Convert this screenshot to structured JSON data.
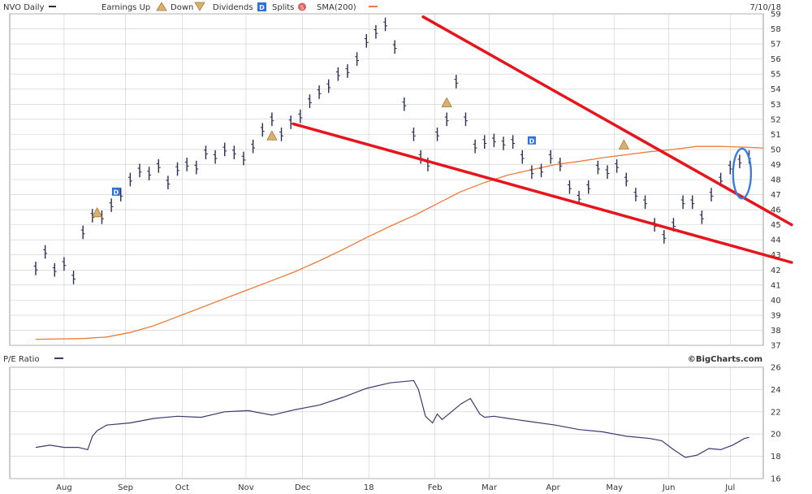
{
  "header": {
    "symbol_label": "NVO Daily",
    "earnings_up_label": "Earnings Up",
    "down_label": "Down",
    "dividends_label": "Dividends",
    "splits_label": "Splits",
    "sma_label": "SMA(200)",
    "date": "7/10/18"
  },
  "lower_header": {
    "pe_label": "P/E Ratio",
    "credit": "©BigCharts.com"
  },
  "colors": {
    "price": "#2b2b55",
    "sma": "#f07a3a",
    "trendline": "#e8141c",
    "highlight": "#3a7fd6",
    "pe": "#3a3a6e",
    "grid": "#cccccc",
    "dividend_marker": "#2a6fdb",
    "earnings_marker": "#c8963c"
  },
  "chart_data": [
    {
      "type": "line",
      "title": "",
      "ylabel": "",
      "ylim": [
        37,
        59
      ],
      "yticks": [
        37,
        38,
        39,
        40,
        41,
        42,
        43,
        44,
        45,
        46,
        47,
        48,
        49,
        50,
        51,
        52,
        53,
        54,
        55,
        56,
        57,
        58,
        59
      ],
      "x_month_labels": [
        "Aug",
        "Sep",
        "Oct",
        "Nov",
        "Dec",
        "18",
        "Feb",
        "Mar",
        "Apr",
        "May",
        "Jun",
        "Jul"
      ],
      "x_month_pos": [
        12,
        38,
        62,
        89,
        113,
        141,
        169,
        192,
        219,
        245,
        268,
        294
      ],
      "xlim": [
        -11,
        308
      ],
      "grid": true,
      "series": [
        {
          "name": "NVO Daily",
          "style": "ohlc",
          "x": [
            0,
            4,
            8,
            12,
            16,
            20,
            24,
            28,
            32,
            36,
            40,
            44,
            48,
            52,
            56,
            60,
            64,
            68,
            72,
            76,
            80,
            84,
            88,
            92,
            96,
            100,
            104,
            108,
            112,
            116,
            120,
            124,
            128,
            132,
            136,
            140,
            144,
            148,
            152,
            156,
            160,
            163,
            166,
            170,
            174,
            178,
            182,
            186,
            190,
            194,
            198,
            202,
            206,
            210,
            214,
            218,
            222,
            226,
            230,
            234,
            238,
            242,
            246,
            250,
            254,
            258,
            262,
            266,
            270,
            274,
            278,
            282,
            286,
            290,
            294,
            298,
            302
          ],
          "values": [
            42.1,
            43.2,
            42.0,
            42.4,
            41.5,
            44.5,
            45.6,
            45.5,
            46.3,
            47.0,
            48.0,
            48.6,
            48.4,
            48.9,
            47.8,
            48.7,
            49.0,
            48.8,
            49.8,
            49.5,
            50.0,
            49.8,
            49.4,
            50.2,
            51.3,
            52.0,
            51.0,
            51.8,
            52.2,
            53.2,
            53.8,
            54.2,
            55.0,
            55.2,
            56.0,
            57.2,
            57.8,
            58.3,
            56.8,
            53.0,
            51.0,
            49.5,
            49.0,
            51.0,
            52.0,
            54.5,
            52.0,
            50.2,
            50.5,
            50.6,
            50.4,
            50.5,
            49.5,
            48.5,
            48.6,
            49.5,
            49.0,
            47.5,
            46.8,
            47.5,
            48.8,
            48.5,
            48.9,
            48.0,
            47.0,
            46.5,
            45.0,
            44.2,
            45.0,
            46.5,
            46.5,
            45.5,
            47.0,
            48.0,
            48.8,
            49.2,
            49.5
          ]
        },
        {
          "name": "SMA(200)",
          "style": "line",
          "x": [
            0,
            20,
            30,
            40,
            50,
            60,
            70,
            80,
            90,
            100,
            110,
            120,
            130,
            140,
            150,
            160,
            170,
            180,
            190,
            200,
            210,
            220,
            230,
            240,
            250,
            260,
            270,
            280,
            290,
            300,
            308
          ],
          "values": [
            37.4,
            37.45,
            37.55,
            37.85,
            38.3,
            38.9,
            39.5,
            40.1,
            40.7,
            41.3,
            41.9,
            42.6,
            43.35,
            44.15,
            44.9,
            45.6,
            46.4,
            47.2,
            47.8,
            48.3,
            48.65,
            49.0,
            49.2,
            49.45,
            49.65,
            49.85,
            50.0,
            50.2,
            50.2,
            50.15,
            50.1
          ]
        }
      ],
      "dividend_markers": [
        {
          "x": 34,
          "y": 47.2
        },
        {
          "x": 210,
          "y": 50.6
        }
      ],
      "earnings_markers": [
        {
          "x": 26,
          "y": 45.8
        },
        {
          "x": 100,
          "y": 50.9
        },
        {
          "x": 174,
          "y": 53.1
        },
        {
          "x": 249,
          "y": 50.3
        }
      ],
      "annotations": {
        "upper_trendline": [
          [
            164,
            58.8
          ],
          [
            320,
            45.0
          ]
        ],
        "lower_trendline": [
          [
            109,
            51.7
          ],
          [
            320,
            42.5
          ]
        ],
        "highlight_ellipse": {
          "cx": 299,
          "cy": 48.4,
          "rx": 3.8,
          "ry": 1.65
        }
      }
    },
    {
      "type": "line",
      "title": "",
      "ylabel": "",
      "ylim": [
        16,
        26
      ],
      "yticks": [
        16,
        18,
        20,
        22,
        24,
        26
      ],
      "xlim": [
        -11,
        308
      ],
      "grid": true,
      "series": [
        {
          "name": "P/E Ratio",
          "x": [
            0,
            6,
            12,
            18,
            22,
            24,
            26,
            30,
            40,
            50,
            60,
            70,
            80,
            90,
            100,
            110,
            120,
            130,
            140,
            150,
            160,
            162,
            165,
            168,
            170,
            172,
            176,
            180,
            184,
            188,
            190,
            194,
            200,
            210,
            220,
            230,
            240,
            250,
            260,
            265,
            270,
            275,
            280,
            285,
            290,
            295,
            300,
            302
          ],
          "values": [
            18.8,
            19.0,
            18.8,
            18.8,
            18.6,
            19.8,
            20.3,
            20.8,
            21.0,
            21.4,
            21.6,
            21.5,
            22.0,
            22.1,
            21.7,
            22.2,
            22.6,
            23.3,
            24.1,
            24.6,
            24.8,
            24.0,
            21.6,
            21.0,
            21.8,
            21.3,
            22.0,
            22.7,
            23.2,
            21.8,
            21.5,
            21.6,
            21.4,
            21.1,
            20.8,
            20.4,
            20.2,
            19.8,
            19.6,
            19.4,
            18.6,
            17.9,
            18.1,
            18.7,
            18.6,
            19.0,
            19.6,
            19.7
          ]
        }
      ]
    }
  ]
}
